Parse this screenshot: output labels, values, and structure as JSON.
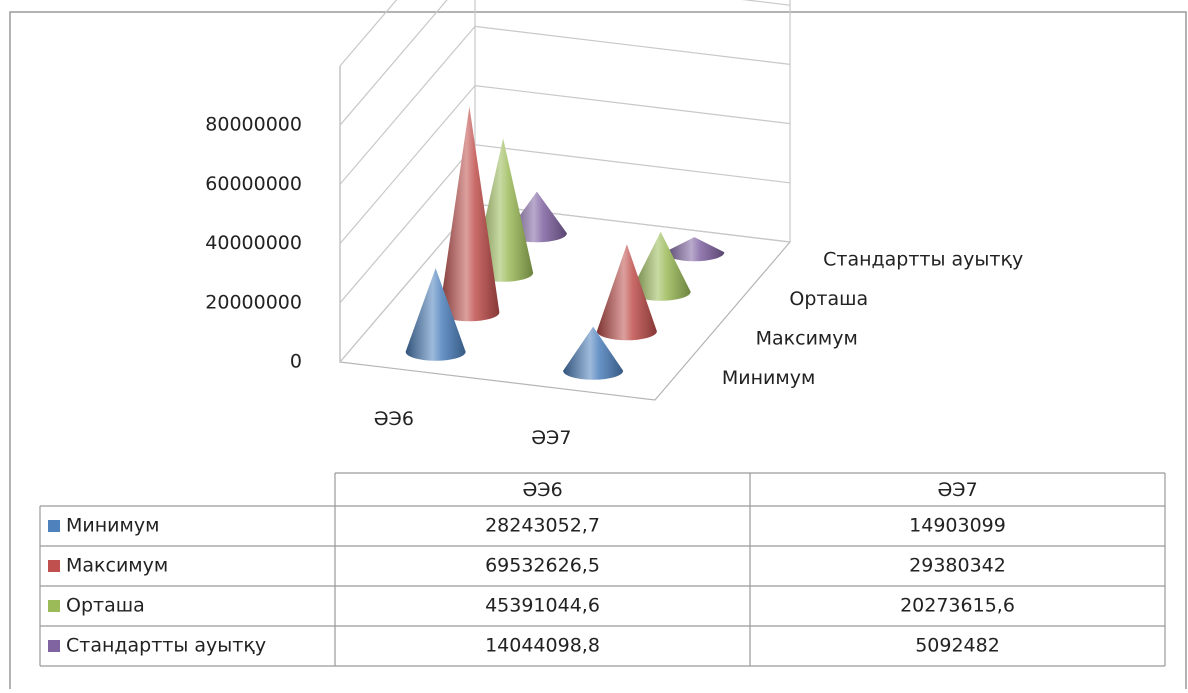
{
  "chart_data": {
    "type": "cone",
    "categories": [
      "ӘЭ6",
      "ӘЭ7"
    ],
    "series": [
      {
        "name": "Минимум",
        "color": "#4f81bd",
        "values": [
          28243052.7,
          14903099
        ],
        "value_labels": [
          "28243052,7",
          "14903099"
        ]
      },
      {
        "name": "Максимум",
        "color": "#c0504d",
        "values": [
          69532626.5,
          29380342
        ],
        "value_labels": [
          "69532626,5",
          "29380342"
        ]
      },
      {
        "name": "Орташа",
        "color": "#9bbb59",
        "values": [
          45391044.6,
          20273615.6
        ],
        "value_labels": [
          "45391044,6",
          "20273615,6"
        ]
      },
      {
        "name": "Стандартты ауытқу",
        "color": "#8064a2",
        "values": [
          14044098.8,
          5092482
        ],
        "value_labels": [
          "14044098,8",
          "5092482"
        ]
      }
    ],
    "ylim": [
      0,
      100000000
    ],
    "yticks": [
      0,
      20000000,
      40000000,
      60000000,
      80000000
    ],
    "grid": true,
    "data_table": true
  }
}
